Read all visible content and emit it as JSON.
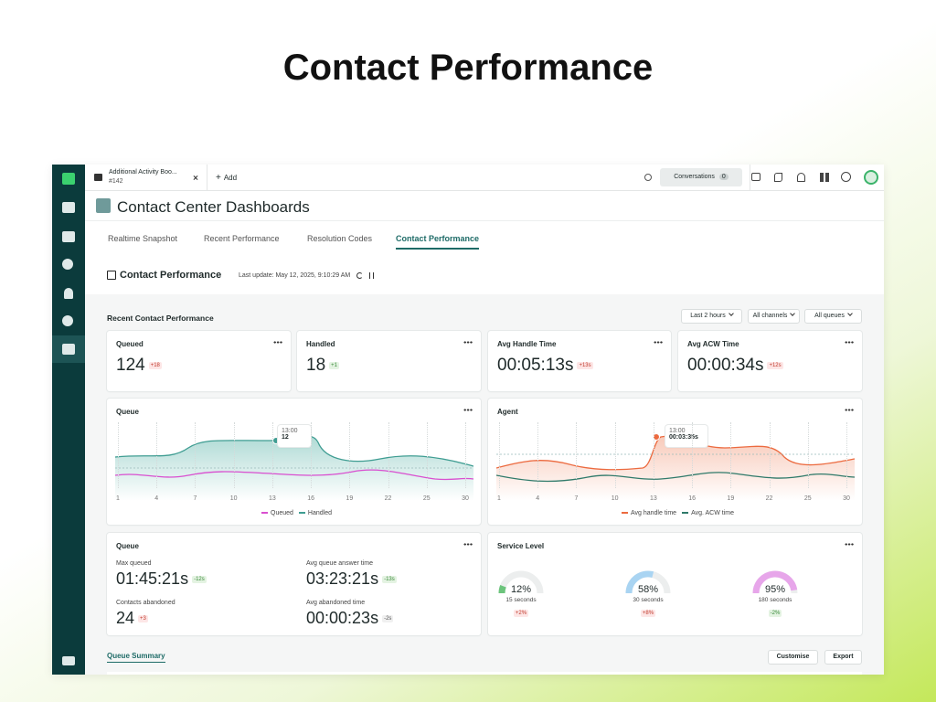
{
  "page_title": "Contact Performance",
  "tab": {
    "title": "Additional Activity Boo...",
    "subtitle": "#142"
  },
  "add": "Add",
  "conversations": {
    "label": "Conversations",
    "count": 0
  },
  "header": "Contact Center Dashboards",
  "nav_tabs": [
    "Realtime Snapshot",
    "Recent Performance",
    "Resolution Codes",
    "Contact Performance"
  ],
  "active_tab": 3,
  "section": {
    "title": "Contact Performance",
    "last_update": "Last update: May 12, 2025, 9:10:29 AM"
  },
  "panel": {
    "title": "Recent Contact Performance",
    "filters": [
      "Last 2 hours",
      "All channels",
      "All queues"
    ]
  },
  "kpis": [
    {
      "label": "Queued",
      "value": "124",
      "delta": "+18",
      "tone": "bad"
    },
    {
      "label": "Handled",
      "value": "18",
      "delta": "+1",
      "tone": "good"
    },
    {
      "label": "Avg Handle Time",
      "value": "00:05:13s",
      "delta": "+13s",
      "tone": "bad"
    },
    {
      "label": "Avg ACW Time",
      "value": "00:00:34s",
      "delta": "+12s",
      "tone": "bad"
    }
  ],
  "queue_chart": {
    "title": "Queue",
    "x_labels": [
      1,
      4,
      7,
      10,
      13,
      16,
      19,
      22,
      25,
      30
    ],
    "tooltip": {
      "time": "13:00",
      "value": "12"
    },
    "legend": [
      "Queued",
      "Handled"
    ]
  },
  "agent_chart": {
    "title": "Agent",
    "x_labels": [
      1,
      4,
      7,
      10,
      13,
      16,
      19,
      22,
      25,
      30
    ],
    "tooltip": {
      "time": "13:00",
      "value": "00:03:35s"
    },
    "legend": [
      "Avg handle time",
      "Avg. ACW time"
    ]
  },
  "queue_stats": {
    "title": "Queue",
    "items": [
      {
        "label": "Max queued",
        "value": "01:45:21s",
        "delta": "-12s",
        "tone": "good"
      },
      {
        "label": "Avg queue answer time",
        "value": "03:23:21s",
        "delta": "-13s",
        "tone": "good"
      },
      {
        "label": "Contacts abandoned",
        "value": "24",
        "delta": "+3",
        "tone": "bad"
      },
      {
        "label": "Avg abandoned time",
        "value": "00:00:23s",
        "delta": "-2s",
        "tone": "neutral"
      }
    ]
  },
  "service_level": {
    "title": "Service Level",
    "gauges": [
      {
        "value": 12,
        "label": "12%",
        "caption": "15 seconds",
        "delta": "+2%",
        "tone": "bad",
        "color": "#6cc47c"
      },
      {
        "value": 58,
        "label": "58%",
        "caption": "30 seconds",
        "delta": "+8%",
        "tone": "bad",
        "color": "#a9d4f2"
      },
      {
        "value": 95,
        "label": "95%",
        "caption": "180 seconds",
        "delta": "-2%",
        "tone": "good",
        "color": "#e7a6ea"
      }
    ]
  },
  "summary": {
    "title": "Queue Summary",
    "buttons": [
      "Customise",
      "Export"
    ]
  }
}
